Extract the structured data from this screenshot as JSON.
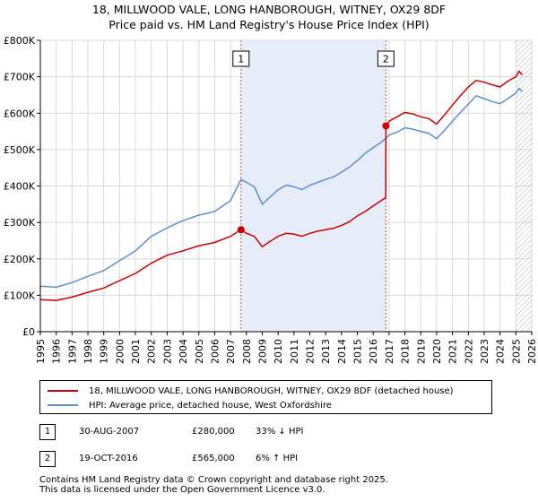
{
  "title": {
    "line1": "18, MILLWOOD VALE, LONG HANBOROUGH, WITNEY, OX29 8DF",
    "line2": "Price paid vs. HM Land Registry's House Price Index (HPI)"
  },
  "chart_data": {
    "type": "line",
    "title": "18, MILLWOOD VALE, LONG HANBOROUGH, WITNEY, OX29 8DF — Price paid vs. HM Land Registry's House Price Index (HPI)",
    "xlabel": "",
    "ylabel": "",
    "xlim": [
      1995,
      2026
    ],
    "ylim": [
      0,
      800000
    ],
    "x_ticks": [
      "1995",
      "1996",
      "1997",
      "1998",
      "1999",
      "2000",
      "2001",
      "2002",
      "2003",
      "2004",
      "2005",
      "2006",
      "2007",
      "2008",
      "2009",
      "2010",
      "2011",
      "2012",
      "2013",
      "2014",
      "2015",
      "2016",
      "2017",
      "2018",
      "2019",
      "2020",
      "2021",
      "2022",
      "2023",
      "2024",
      "2025",
      "2026"
    ],
    "y_ticks": [
      {
        "value": 0,
        "label": "£0"
      },
      {
        "value": 100000,
        "label": "£100K"
      },
      {
        "value": 200000,
        "label": "£200K"
      },
      {
        "value": 300000,
        "label": "£300K"
      },
      {
        "value": 400000,
        "label": "£400K"
      },
      {
        "value": 500000,
        "label": "£500K"
      },
      {
        "value": 600000,
        "label": "£600K"
      },
      {
        "value": 700000,
        "label": "£700K"
      },
      {
        "value": 800000,
        "label": "£800K"
      }
    ],
    "shaded_periods": [
      {
        "from": 2007.66,
        "to": 2016.8
      }
    ],
    "forecast_from": 2025.0,
    "series": [
      {
        "name": "18, MILLWOOD VALE, LONG HANBOROUGH, WITNEY, OX29 8DF (detached house)",
        "color": "#cc0000",
        "points": [
          [
            1995.0,
            88000
          ],
          [
            1996.0,
            86000
          ],
          [
            1997.0,
            95000
          ],
          [
            1998.0,
            108000
          ],
          [
            1999.0,
            120000
          ],
          [
            2000.0,
            140000
          ],
          [
            2001.0,
            160000
          ],
          [
            2002.0,
            188000
          ],
          [
            2003.0,
            210000
          ],
          [
            2004.0,
            222000
          ],
          [
            2005.0,
            236000
          ],
          [
            2006.0,
            245000
          ],
          [
            2007.0,
            262000
          ],
          [
            2007.66,
            280000
          ],
          [
            2008.0,
            270000
          ],
          [
            2008.5,
            262000
          ],
          [
            2009.0,
            233000
          ],
          [
            2009.5,
            248000
          ],
          [
            2010.0,
            262000
          ],
          [
            2010.5,
            270000
          ],
          [
            2011.0,
            268000
          ],
          [
            2011.5,
            262000
          ],
          [
            2012.0,
            270000
          ],
          [
            2012.5,
            276000
          ],
          [
            2013.0,
            280000
          ],
          [
            2013.5,
            284000
          ],
          [
            2014.0,
            292000
          ],
          [
            2014.5,
            302000
          ],
          [
            2015.0,
            318000
          ],
          [
            2015.5,
            330000
          ],
          [
            2016.0,
            345000
          ],
          [
            2016.5,
            360000
          ],
          [
            2016.79,
            368000
          ],
          [
            2016.8,
            565000
          ],
          [
            2017.0,
            578000
          ],
          [
            2017.5,
            590000
          ],
          [
            2018.0,
            602000
          ],
          [
            2018.5,
            598000
          ],
          [
            2019.0,
            590000
          ],
          [
            2019.5,
            585000
          ],
          [
            2020.0,
            570000
          ],
          [
            2020.4,
            590000
          ],
          [
            2021.0,
            622000
          ],
          [
            2021.5,
            648000
          ],
          [
            2022.0,
            672000
          ],
          [
            2022.5,
            690000
          ],
          [
            2023.0,
            685000
          ],
          [
            2023.5,
            678000
          ],
          [
            2024.0,
            672000
          ],
          [
            2024.5,
            688000
          ],
          [
            2025.0,
            700000
          ],
          [
            2025.2,
            715000
          ],
          [
            2025.4,
            705000
          ]
        ]
      },
      {
        "name": "HPI: Average price, detached house, West Oxfordshire",
        "color": "#5b8ed1",
        "points": [
          [
            1995.0,
            125000
          ],
          [
            1996.0,
            122000
          ],
          [
            1997.0,
            135000
          ],
          [
            1998.0,
            152000
          ],
          [
            1999.0,
            168000
          ],
          [
            2000.0,
            195000
          ],
          [
            2001.0,
            222000
          ],
          [
            2002.0,
            262000
          ],
          [
            2003.0,
            285000
          ],
          [
            2004.0,
            305000
          ],
          [
            2005.0,
            320000
          ],
          [
            2006.0,
            330000
          ],
          [
            2007.0,
            360000
          ],
          [
            2007.66,
            418000
          ],
          [
            2008.0,
            410000
          ],
          [
            2008.5,
            398000
          ],
          [
            2009.0,
            350000
          ],
          [
            2009.5,
            370000
          ],
          [
            2010.0,
            390000
          ],
          [
            2010.5,
            402000
          ],
          [
            2011.0,
            398000
          ],
          [
            2011.5,
            390000
          ],
          [
            2012.0,
            402000
          ],
          [
            2012.5,
            410000
          ],
          [
            2013.0,
            418000
          ],
          [
            2013.5,
            425000
          ],
          [
            2014.0,
            438000
          ],
          [
            2014.5,
            452000
          ],
          [
            2015.0,
            470000
          ],
          [
            2015.5,
            490000
          ],
          [
            2016.0,
            505000
          ],
          [
            2016.5,
            520000
          ],
          [
            2016.8,
            532000
          ],
          [
            2017.0,
            540000
          ],
          [
            2017.5,
            548000
          ],
          [
            2018.0,
            560000
          ],
          [
            2018.5,
            556000
          ],
          [
            2019.0,
            550000
          ],
          [
            2019.5,
            545000
          ],
          [
            2020.0,
            530000
          ],
          [
            2020.4,
            548000
          ],
          [
            2021.0,
            578000
          ],
          [
            2021.5,
            602000
          ],
          [
            2022.0,
            625000
          ],
          [
            2022.5,
            648000
          ],
          [
            2023.0,
            640000
          ],
          [
            2023.5,
            632000
          ],
          [
            2024.0,
            626000
          ],
          [
            2024.5,
            640000
          ],
          [
            2025.0,
            655000
          ],
          [
            2025.2,
            668000
          ],
          [
            2025.4,
            660000
          ]
        ]
      }
    ],
    "sales": [
      {
        "label": "1",
        "x": 2007.66,
        "price": 280000
      },
      {
        "label": "2",
        "x": 2016.8,
        "price": 565000
      }
    ]
  },
  "legend": {
    "red_label": "18, MILLWOOD VALE, LONG HANBOROUGH, WITNEY, OX29 8DF (detached house)",
    "blue_label": "HPI: Average price, detached house, West Oxfordshire",
    "red_color": "#cc0000",
    "blue_color": "#5b8ed1"
  },
  "sales_table": [
    {
      "num": "1",
      "date": "30-AUG-2007",
      "price": "£280,000",
      "hpi": "33% ↓ HPI"
    },
    {
      "num": "2",
      "date": "19-OCT-2016",
      "price": "£565,000",
      "hpi": "6% ↑ HPI"
    }
  ],
  "footer": {
    "line1": "Contains HM Land Registry data © Crown copyright and database right 2025.",
    "line2": "This data is licensed under the Open Government Licence v3.0."
  }
}
